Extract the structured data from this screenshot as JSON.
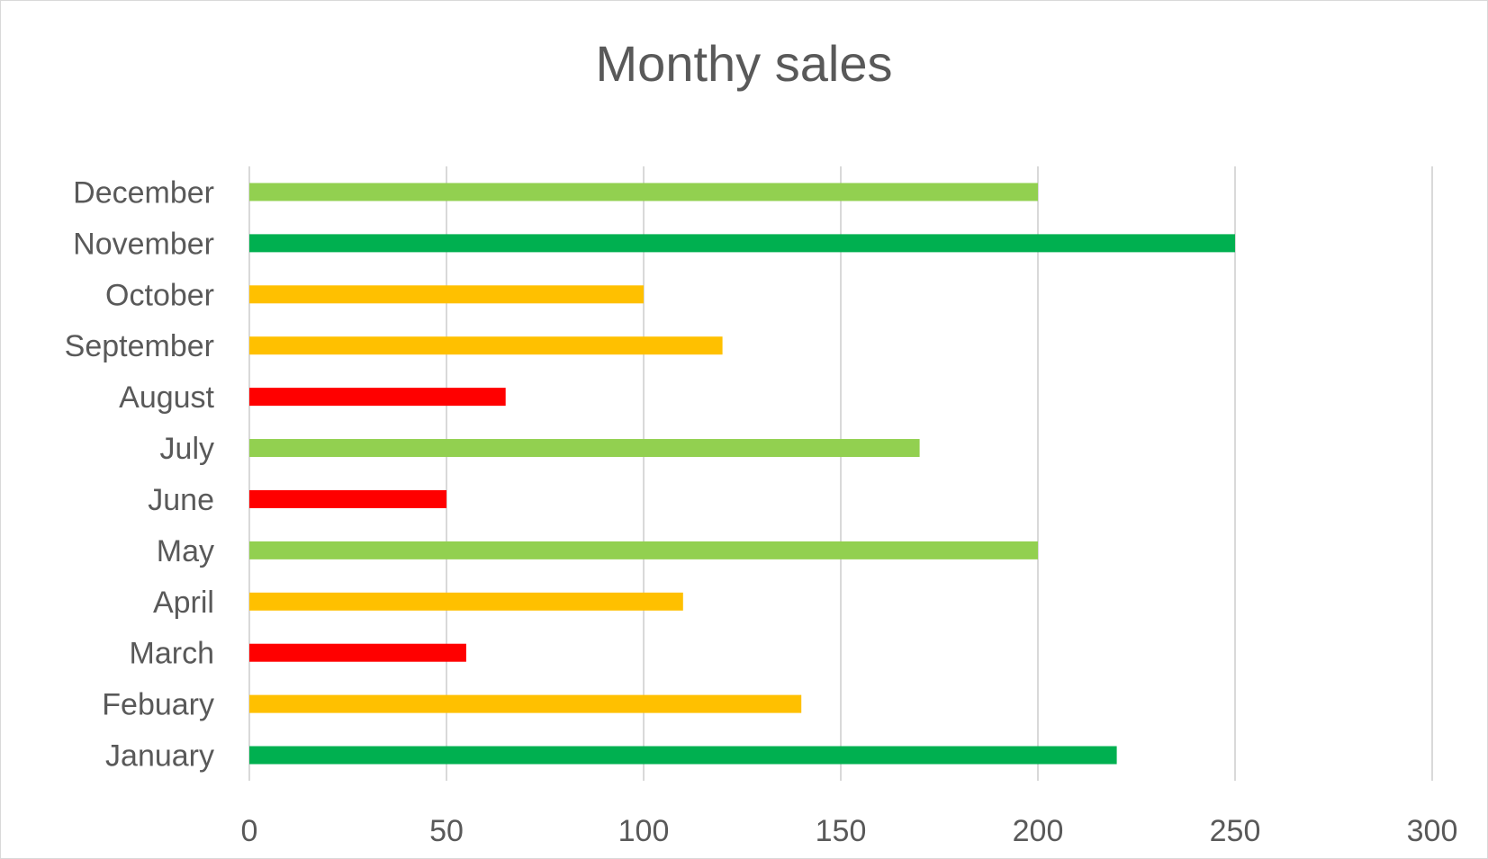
{
  "chart_data": {
    "type": "bar",
    "orientation": "horizontal",
    "title": "Monthy sales",
    "xlabel": "",
    "ylabel": "",
    "categories": [
      "January",
      "Febuary",
      "March",
      "April",
      "May",
      "June",
      "July",
      "August",
      "September",
      "October",
      "November",
      "December"
    ],
    "values": [
      220,
      140,
      55,
      110,
      200,
      50,
      170,
      65,
      120,
      100,
      250,
      200
    ],
    "bar_colors": [
      "#00b050",
      "#ffc000",
      "#ff0000",
      "#ffc000",
      "#92d050",
      "#ff0000",
      "#92d050",
      "#ff0000",
      "#ffc000",
      "#ffc000",
      "#00b050",
      "#92d050"
    ],
    "xlim": [
      0,
      300
    ],
    "x_ticks": [
      "0",
      "50",
      "100",
      "150",
      "200",
      "250",
      "300"
    ],
    "grid": true,
    "legend": "none"
  }
}
